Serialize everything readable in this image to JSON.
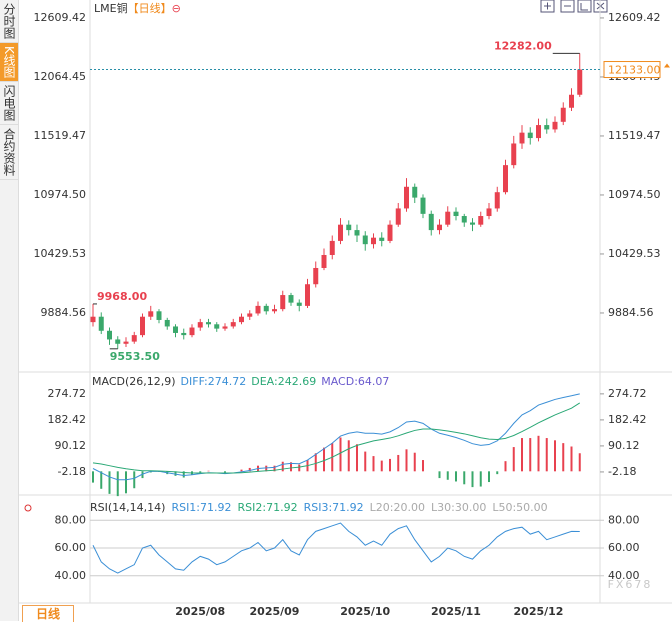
{
  "sidebar_tabs": [
    "分时图",
    "K线图",
    "闪电图",
    "合约资料"
  ],
  "active_tab": 1,
  "period_button": "日线",
  "watermark": "FX678",
  "chart_data": [
    {
      "type": "candlestick",
      "title": "LME铜",
      "title_period": "【日线】",
      "title_icon": "⊖",
      "up_color": "#e8414f",
      "down_color": "#3aa86b",
      "ylim": [
        9404,
        12729
      ],
      "yticks": [
        12609.42,
        12064.45,
        11519.47,
        {
          "value": 10974.5,
          "label": "10974.50"
        },
        10429.53,
        9884.56
      ],
      "last_price": {
        "value": 12133,
        "label": "12133.00"
      },
      "high_mark": {
        "value": 12282,
        "label": "12282.00"
      },
      "left_high_mark": {
        "value": 9968,
        "label": "9968.00"
      },
      "low_mark": {
        "value": 9553.5,
        "label": "9553.50"
      },
      "open": [
        9800,
        9850,
        9720,
        9640,
        9600,
        9620,
        9680,
        9850,
        9900,
        9820,
        9760,
        9700,
        9680,
        9750,
        9800,
        9780,
        9740,
        9760,
        9800,
        9850,
        9880,
        9950,
        9900,
        9920,
        10050,
        9980,
        9950,
        10150,
        10300,
        10420,
        10550,
        10700,
        10650,
        10600,
        10520,
        10580,
        10550,
        10700,
        10850,
        11050,
        10950,
        10800,
        10650,
        10700,
        10820,
        10780,
        10720,
        10700,
        10780,
        10850,
        11000,
        11250,
        11450,
        11550,
        11500,
        11620,
        11580,
        11650,
        11780,
        11900
      ],
      "high": [
        9968,
        9890,
        9750,
        9670,
        9660,
        9710,
        9880,
        9950,
        9920,
        9840,
        9780,
        9740,
        9780,
        9830,
        9830,
        9800,
        9790,
        9830,
        9880,
        9910,
        9990,
        9970,
        9960,
        10090,
        10070,
        10010,
        10200,
        10360,
        10480,
        10600,
        10760,
        10740,
        10700,
        10640,
        10620,
        10630,
        10740,
        10900,
        11130,
        11080,
        10980,
        10830,
        10750,
        10870,
        10860,
        10800,
        10760,
        10820,
        10900,
        11050,
        11300,
        11520,
        11620,
        11600,
        11680,
        11680,
        11700,
        11830,
        11960,
        12282
      ],
      "low": [
        9760,
        9690,
        9590,
        9553.5,
        9570,
        9600,
        9660,
        9820,
        9790,
        9730,
        9660,
        9640,
        9660,
        9720,
        9750,
        9710,
        9720,
        9740,
        9780,
        9820,
        9860,
        9870,
        9880,
        9900,
        9950,
        9900,
        9930,
        10120,
        10280,
        10380,
        10520,
        10600,
        10540,
        10460,
        10480,
        10500,
        10530,
        10680,
        10820,
        10900,
        10760,
        10600,
        10610,
        10680,
        10740,
        10680,
        10640,
        10680,
        10750,
        10820,
        10980,
        11220,
        11400,
        11440,
        11470,
        11540,
        11550,
        11620,
        11750,
        11880
      ],
      "close": [
        9850,
        9720,
        9640,
        9600,
        9620,
        9680,
        9850,
        9900,
        9820,
        9760,
        9700,
        9680,
        9750,
        9800,
        9780,
        9740,
        9760,
        9800,
        9850,
        9880,
        9950,
        9900,
        9920,
        10050,
        9980,
        9950,
        10150,
        10300,
        10420,
        10550,
        10700,
        10650,
        10600,
        10520,
        10580,
        10550,
        10700,
        10850,
        11050,
        10950,
        10800,
        10650,
        10700,
        10820,
        10780,
        10720,
        10700,
        10780,
        10850,
        11000,
        11250,
        11450,
        11550,
        11500,
        11620,
        11580,
        11650,
        11780,
        11900,
        12133
      ]
    },
    {
      "type": "macd",
      "legend": [
        "MACD(26,12,9)",
        "DIFF:274.72",
        "DEA:242.69",
        "MACD:64.07"
      ],
      "ylim": [
        -84,
        331
      ],
      "yticks": [
        274.72,
        182.42,
        90.12,
        -2.18
      ],
      "series": [
        {
          "name": "DIFF",
          "color": "#3b8fd6",
          "values": [
            10,
            -5,
            -20,
            -30,
            -30,
            -25,
            -10,
            0,
            0,
            -5,
            -10,
            -15,
            -12,
            -8,
            -5,
            -6,
            -8,
            -6,
            -2,
            3,
            10,
            12,
            14,
            25,
            28,
            27,
            40,
            60,
            80,
            100,
            125,
            135,
            140,
            135,
            135,
            132,
            140,
            155,
            175,
            178,
            170,
            150,
            135,
            128,
            120,
            110,
            98,
            92,
            95,
            108,
            135,
            170,
            200,
            215,
            235,
            245,
            255,
            262,
            268,
            274.72
          ]
        },
        {
          "name": "DEA",
          "color": "#2aa876",
          "values": [
            30,
            26,
            20,
            14,
            9,
            5,
            2,
            2,
            1,
            0,
            -2,
            -4,
            -6,
            -6,
            -6,
            -6,
            -6,
            -6,
            -5,
            -3,
            0,
            2,
            4,
            8,
            12,
            15,
            20,
            28,
            38,
            50,
            65,
            80,
            92,
            100,
            108,
            113,
            118,
            126,
            136,
            145,
            150,
            150,
            147,
            143,
            138,
            133,
            126,
            119,
            114,
            113,
            117,
            127,
            141,
            156,
            172,
            186,
            200,
            212,
            224,
            242.69
          ]
        },
        {
          "name": "MACD",
          "color": "#6a5acd",
          "values": [
            -40,
            -62,
            -80,
            -88,
            -78,
            -60,
            -24,
            -4,
            -2,
            -10,
            -16,
            -22,
            -12,
            -4,
            2,
            0,
            -4,
            0,
            6,
            12,
            20,
            20,
            20,
            34,
            32,
            24,
            40,
            64,
            84,
            100,
            120,
            110,
            96,
            70,
            54,
            38,
            44,
            58,
            78,
            66,
            40,
            0,
            -24,
            -30,
            -36,
            -46,
            -56,
            -54,
            -38,
            -10,
            36,
            86,
            118,
            118,
            126,
            118,
            110,
            100,
            88,
            64.07
          ]
        }
      ]
    },
    {
      "type": "line",
      "legend": [
        "RSI(14,14,14)",
        "RSI1:71.92",
        "RSI2:71.92",
        "RSI3:71.92",
        "L20:20.00",
        "L30:30.00",
        "L50:50.00"
      ],
      "legend_colors": [
        "#333",
        "#3b8fd6",
        "#2aa876",
        "#3b8fd6",
        "#aaa",
        "#aaa",
        "#aaa"
      ],
      "ylim": [
        24,
        91
      ],
      "yticks": [
        {
          "value": 80,
          "label": "80.00"
        },
        {
          "value": 60,
          "label": "60.00"
        },
        {
          "value": 40,
          "label": "40.00"
        }
      ],
      "grid": true,
      "categories": [
        null,
        null,
        null,
        null,
        null,
        null,
        null,
        null,
        null,
        null,
        null,
        null,
        null,
        "2025/08",
        null,
        null,
        null,
        null,
        null,
        null,
        null,
        null,
        "2025/09",
        null,
        null,
        null,
        null,
        null,
        null,
        null,
        null,
        null,
        null,
        "2025/10",
        null,
        null,
        null,
        null,
        null,
        null,
        null,
        null,
        null,
        null,
        "2025/11",
        null,
        null,
        null,
        null,
        null,
        null,
        null,
        null,
        null,
        "2025/12",
        null,
        null,
        null,
        null,
        null
      ],
      "series": [
        {
          "name": "RSI1",
          "color": "#3b8fd6",
          "values": [
            62,
            50,
            45,
            42,
            45,
            48,
            60,
            62,
            55,
            50,
            45,
            44,
            50,
            54,
            52,
            48,
            50,
            54,
            58,
            60,
            64,
            58,
            60,
            66,
            58,
            55,
            66,
            72,
            74,
            76,
            78,
            72,
            68,
            62,
            65,
            62,
            70,
            74,
            76,
            66,
            58,
            50,
            54,
            60,
            58,
            54,
            52,
            58,
            62,
            68,
            72,
            74,
            75,
            70,
            72,
            66,
            68,
            70,
            72,
            71.92
          ]
        }
      ]
    }
  ]
}
